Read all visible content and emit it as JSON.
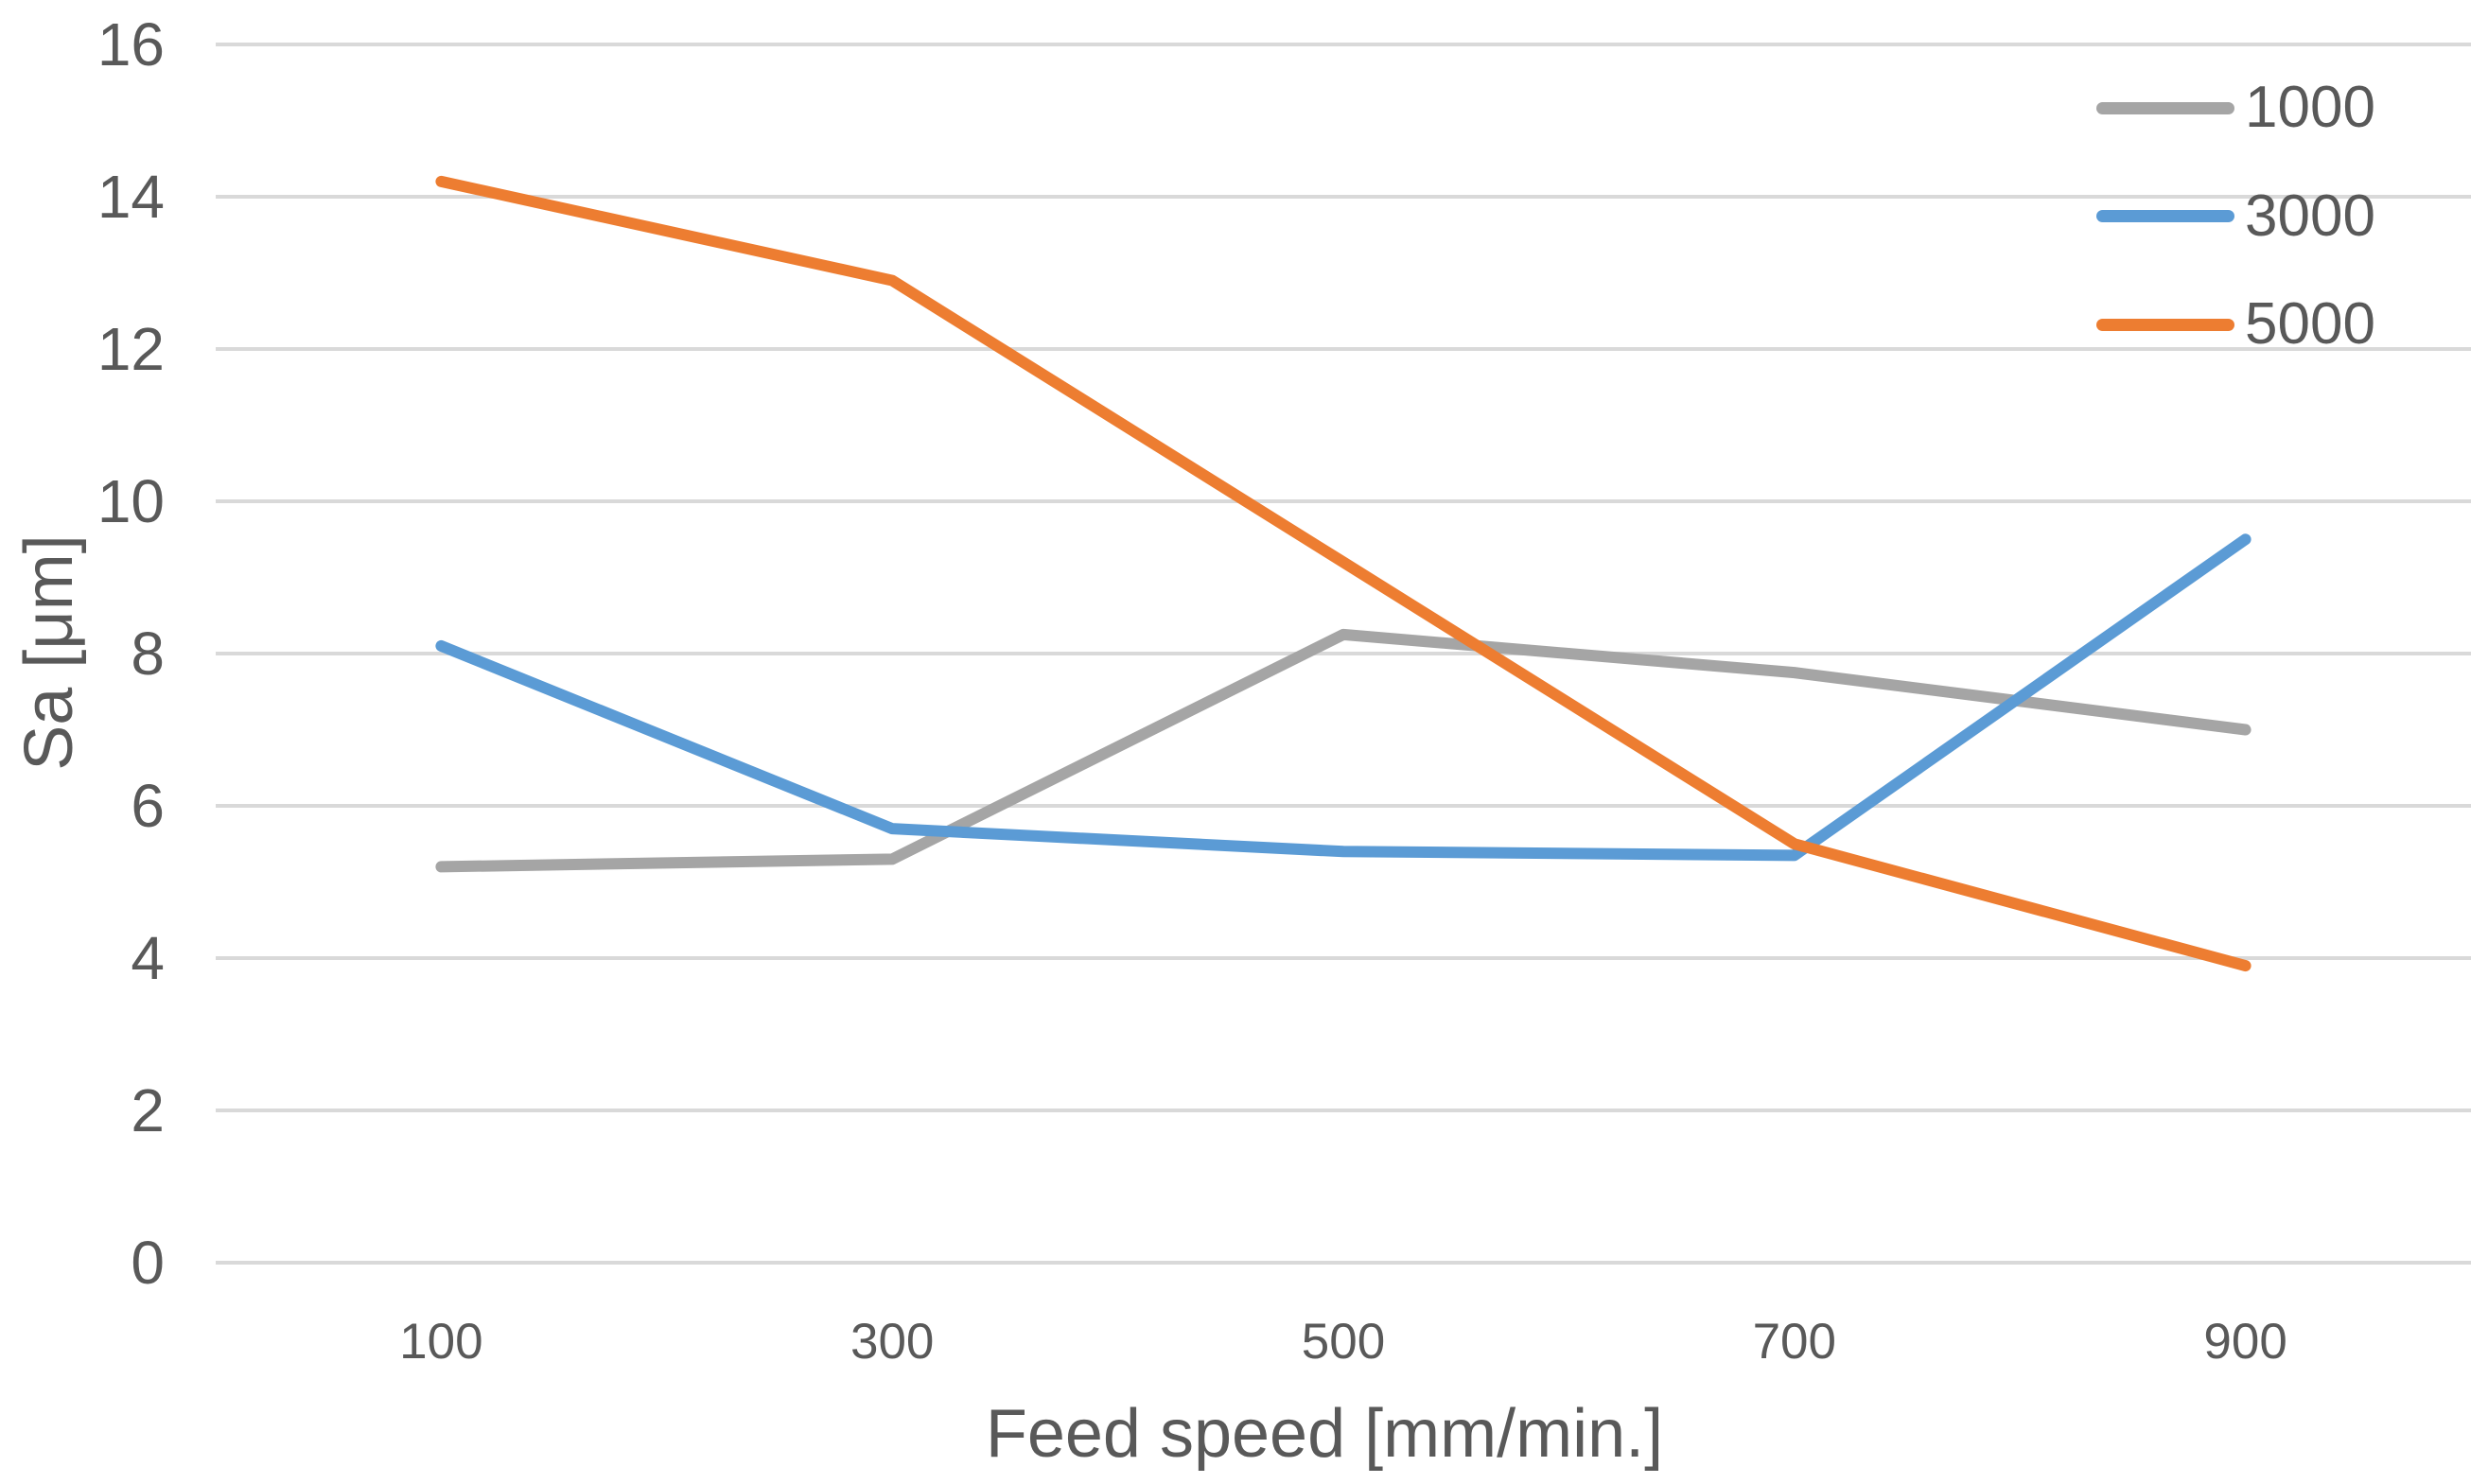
{
  "chart_data": {
    "type": "line",
    "title": "",
    "xlabel": "Feed speed [mm/min.]",
    "ylabel": "Sa [μm]",
    "categories": [
      100,
      300,
      500,
      700,
      900
    ],
    "x_tick_labels": [
      "100",
      "300",
      "500",
      "700",
      "900"
    ],
    "y_tick_labels": [
      "0",
      "2",
      "4",
      "6",
      "8",
      "10",
      "12",
      "14",
      "16"
    ],
    "y_ticks": [
      0,
      2,
      4,
      6,
      8,
      10,
      12,
      14,
      16
    ],
    "ylim": [
      0,
      16
    ],
    "grid": "horizontal-only",
    "legend_position": "top-right-inside",
    "series": [
      {
        "name": "1000",
        "color": "#A5A5A5",
        "values": [
          5.2,
          5.3,
          8.25,
          7.75,
          7.0
        ]
      },
      {
        "name": "3000",
        "color": "#5B9BD5",
        "values": [
          8.1,
          5.7,
          5.4,
          5.35,
          9.5
        ]
      },
      {
        "name": "5000",
        "color": "#ED7D31",
        "values": [
          14.2,
          12.9,
          9.2,
          5.5,
          3.9
        ]
      }
    ]
  },
  "style": {
    "background": "#FFFFFF",
    "text_color": "#595959",
    "gridline_color": "#D9D9D9"
  }
}
